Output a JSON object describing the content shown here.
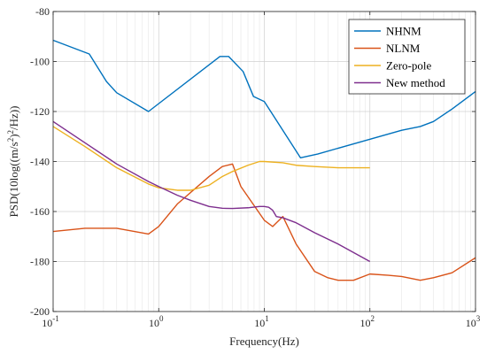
{
  "chart_data": {
    "type": "line",
    "xscale": "log",
    "xlim": [
      0.1,
      1000
    ],
    "ylim": [
      -200,
      -80
    ],
    "xlabel": "Frequency(Hz)",
    "ylabel_parts": [
      "PSD(10log((m/s",
      "2",
      ")",
      "2",
      "/Hz))"
    ],
    "grid": {
      "x": true,
      "y": true,
      "minor_x": true
    },
    "legend": "top-right",
    "xticks": [
      {
        "value": 0.1,
        "base": "10",
        "exp": "-1"
      },
      {
        "value": 1,
        "base": "10",
        "exp": "0"
      },
      {
        "value": 10,
        "base": "10",
        "exp": "1"
      },
      {
        "value": 100,
        "base": "10",
        "exp": "2"
      },
      {
        "value": 1000,
        "base": "10",
        "exp": "3"
      }
    ],
    "yticks": [
      {
        "value": -80,
        "label": "-80"
      },
      {
        "value": -100,
        "label": "-100"
      },
      {
        "value": -120,
        "label": "-120"
      },
      {
        "value": -140,
        "label": "-140"
      },
      {
        "value": -160,
        "label": "-160"
      },
      {
        "value": -180,
        "label": "-180"
      },
      {
        "value": -200,
        "label": "-200"
      }
    ],
    "series": [
      {
        "name": "NHNM",
        "color": "#0072BD",
        "x": [
          0.1,
          0.22,
          0.32,
          0.4,
          0.8,
          3.8,
          4.6,
          6.3,
          7.9,
          10,
          22,
          32,
          200,
          300,
          400,
          600,
          1000
        ],
        "y": [
          -91.5,
          -97,
          -108,
          -112.5,
          -120,
          -98,
          -98,
          -104,
          -114,
          -116,
          -138.5,
          -137,
          -127.5,
          -126,
          -124,
          -119,
          -112
        ]
      },
      {
        "name": "NLNM",
        "color": "#D95319",
        "x": [
          0.1,
          0.2,
          0.4,
          0.8,
          1.0,
          1.5,
          3.0,
          4.0,
          5.0,
          6.0,
          10,
          12,
          15,
          20,
          30,
          40,
          50,
          70,
          100,
          150,
          200,
          300,
          400,
          600,
          1000
        ],
        "y": [
          -168,
          -166.7,
          -166.7,
          -169,
          -166,
          -157,
          -146,
          -142,
          -141,
          -150,
          -163.5,
          -166,
          -162,
          -173,
          -184,
          -186.5,
          -187.5,
          -187.5,
          -185,
          -185.5,
          -186,
          -187.5,
          -186.5,
          -184.5,
          -178.5
        ]
      },
      {
        "name": "Zero-pole",
        "color": "#EDB120",
        "x": [
          0.1,
          0.2,
          0.4,
          0.8,
          1.0,
          1.5,
          2.0,
          3.0,
          4.0,
          5.0,
          7.0,
          9.0,
          10,
          15,
          20,
          30,
          50,
          70,
          100
        ],
        "y": [
          -126,
          -134,
          -142.5,
          -149,
          -150.5,
          -151.5,
          -151.5,
          -149.5,
          -146,
          -144,
          -141.5,
          -140,
          -140,
          -140.5,
          -141.5,
          -142,
          -142.5,
          -142.5,
          -142.5
        ]
      },
      {
        "name": "New method",
        "color": "#7E2F8E",
        "x": [
          0.1,
          0.2,
          0.4,
          0.8,
          1.0,
          1.5,
          2.0,
          3.0,
          4.0,
          5.0,
          7.0,
          9.0,
          10,
          11,
          12,
          13,
          15,
          20,
          30,
          50,
          100
        ],
        "y": [
          -124,
          -132.5,
          -141,
          -148,
          -150,
          -153.5,
          -155.5,
          -158,
          -158.7,
          -158.8,
          -158.5,
          -158,
          -158,
          -158.3,
          -159.5,
          -162,
          -162.5,
          -164.5,
          -168.5,
          -173,
          -180
        ]
      }
    ]
  }
}
